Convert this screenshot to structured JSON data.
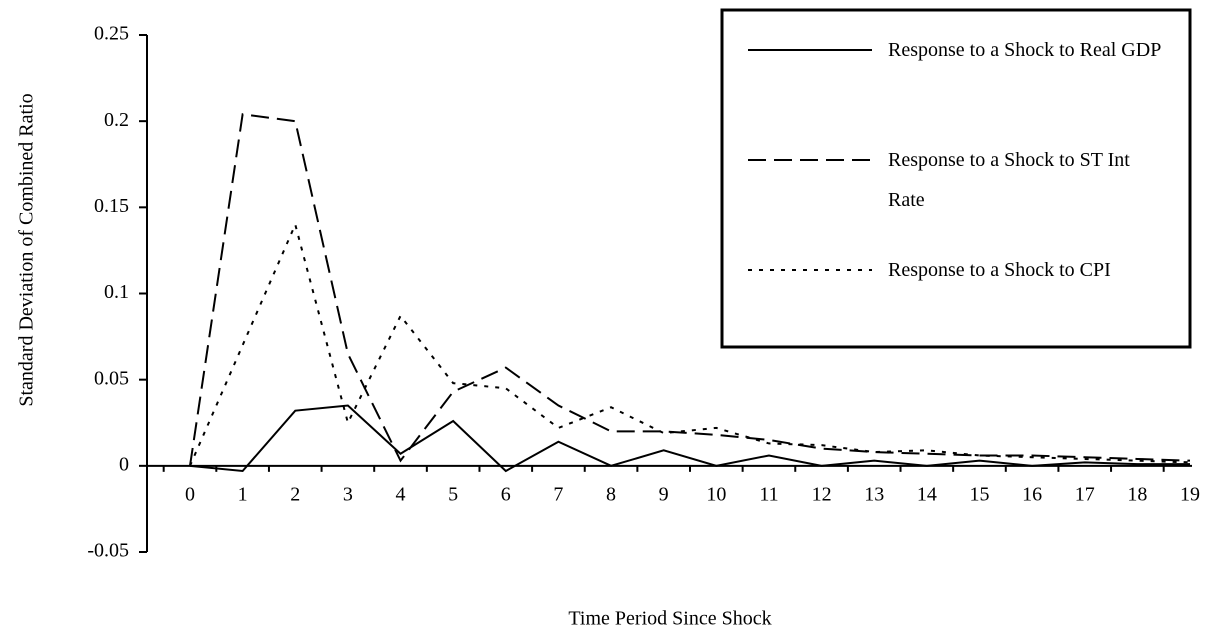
{
  "chart_data": {
    "type": "line",
    "y_label": "Standard Deviation of Combined Ratio",
    "x_label": "Time Period Since Shock",
    "categories": [
      "0",
      "1",
      "2",
      "3",
      "4",
      "5",
      "6",
      "7",
      "8",
      "9",
      "10",
      "11",
      "12",
      "13",
      "14",
      "15",
      "16",
      "17",
      "18",
      "19"
    ],
    "ylim": [
      -0.05,
      0.25
    ],
    "yticks": [
      -0.05,
      0,
      0.05,
      0.1,
      0.15,
      0.2,
      0.25
    ],
    "legend": "top-right",
    "series": [
      {
        "name": "Response to a Shock to Real GDP",
        "color": "#000000",
        "dash": "solid",
        "values": [
          0,
          -0.003,
          0.032,
          0.035,
          0.007,
          0.026,
          -0.003,
          0.014,
          0,
          0.009,
          0,
          0.006,
          0,
          0.003,
          0,
          0.003,
          0,
          0.002,
          0.001,
          0.001
        ]
      },
      {
        "name": "Response to a Shock to ST Int Rate",
        "color": "#000000",
        "dash": "dashed",
        "values": [
          0,
          0.204,
          0.2,
          0.065,
          0.003,
          0.043,
          0.057,
          0.035,
          0.02,
          0.02,
          0.018,
          0.015,
          0.01,
          0.008,
          0.007,
          0.006,
          0.006,
          0.005,
          0.004,
          0.003
        ]
      },
      {
        "name": "Response to a Shock to CPI",
        "color": "#000000",
        "dash": "dotted",
        "values": [
          0,
          0.07,
          0.14,
          0.025,
          0.087,
          0.048,
          0.045,
          0.022,
          0.034,
          0.019,
          0.022,
          0.013,
          0.012,
          0.008,
          0.009,
          0.006,
          0.005,
          0.004,
          0.003,
          0.002
        ]
      }
    ]
  }
}
